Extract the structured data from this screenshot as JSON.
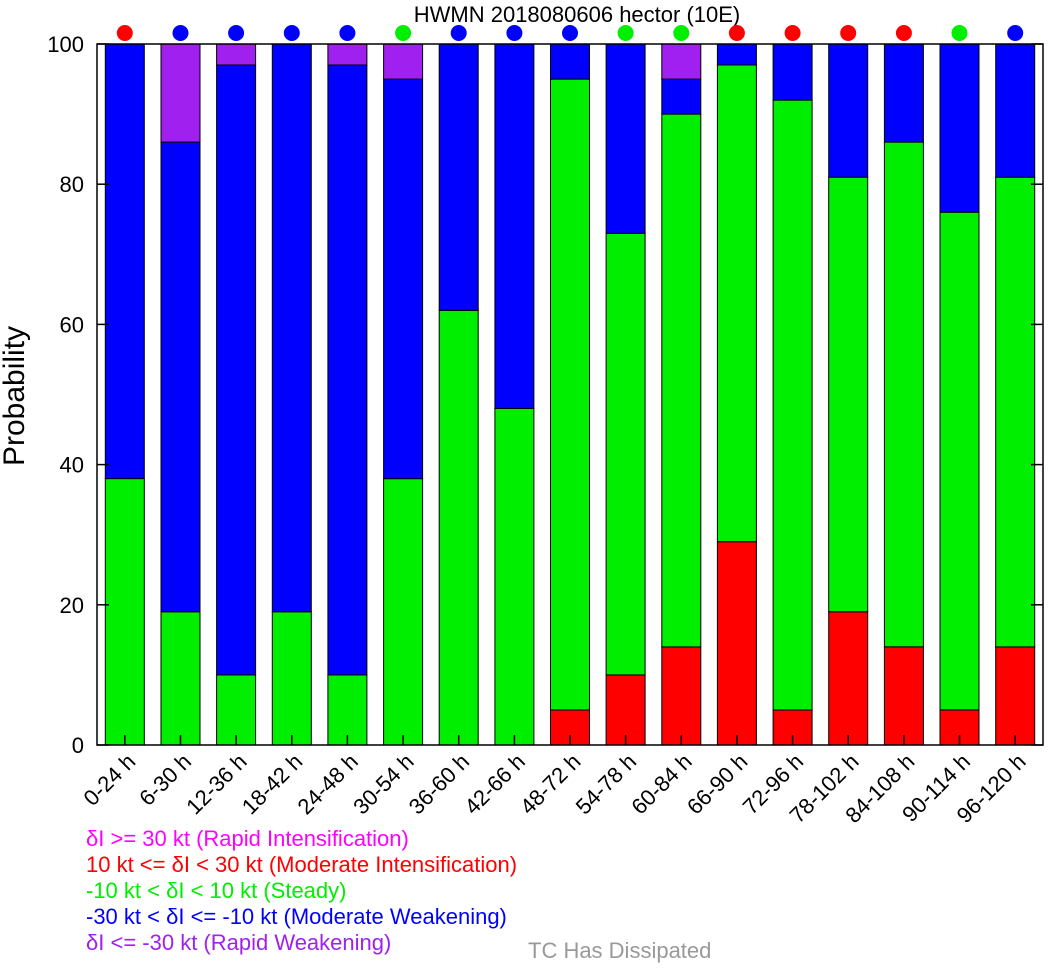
{
  "chart_data": {
    "type": "bar",
    "stacked": true,
    "title": "HWMN 2018080606 hector (10E)",
    "ylabel": "Probability",
    "xlabel": "",
    "ylim": [
      0,
      100
    ],
    "yticks": [
      0,
      20,
      40,
      60,
      80,
      100
    ],
    "categories": [
      "0-24 h",
      "6-30 h",
      "12-36 h",
      "18-42 h",
      "24-48 h",
      "30-54 h",
      "36-60 h",
      "42-66 h",
      "48-72 h",
      "54-78 h",
      "60-84 h",
      "66-90 h",
      "72-96 h",
      "78-102 h",
      "84-108 h",
      "90-114 h",
      "96-120 h"
    ],
    "series": [
      {
        "key": "ri",
        "color": "#ff00ff",
        "values": [
          0,
          0,
          0,
          0,
          0,
          0,
          0,
          0,
          0,
          0,
          0,
          0,
          0,
          0,
          0,
          0,
          0
        ]
      },
      {
        "key": "mi",
        "color": "#ff0000",
        "values": [
          0,
          0,
          0,
          0,
          0,
          0,
          0,
          0,
          5,
          10,
          14,
          29,
          5,
          19,
          14,
          5,
          14
        ]
      },
      {
        "key": "st",
        "color": "#00ee00",
        "values": [
          38,
          19,
          10,
          19,
          10,
          38,
          62,
          48,
          90,
          63,
          76,
          68,
          87,
          62,
          72,
          71,
          67
        ]
      },
      {
        "key": "mw",
        "color": "#0000ff",
        "values": [
          62,
          67,
          87,
          81,
          87,
          57,
          38,
          52,
          5,
          27,
          5,
          3,
          8,
          19,
          14,
          24,
          19
        ]
      },
      {
        "key": "rw",
        "color": "#a020f0",
        "values": [
          0,
          14,
          3,
          0,
          3,
          5,
          0,
          0,
          0,
          0,
          5,
          0,
          0,
          0,
          0,
          0,
          0
        ]
      }
    ],
    "dot_colors": [
      "#ff0000",
      "#0000ff",
      "#0000ff",
      "#0000ff",
      "#0000ff",
      "#00ee00",
      "#0000ff",
      "#0000ff",
      "#0000ff",
      "#00ee00",
      "#00ee00",
      "#ff0000",
      "#ff0000",
      "#ff0000",
      "#ff0000",
      "#00ee00",
      "#0000ff"
    ],
    "legend": [
      {
        "text": "δI >= 30 kt (Rapid Intensification)",
        "color": "#ff00ff"
      },
      {
        "text": "10 kt <= δI < 30 kt (Moderate Intensification)",
        "color": "#ff0000"
      },
      {
        "text": "-10 kt < δI < 10 kt (Steady)",
        "color": "#00ee00"
      },
      {
        "text": "-30 kt < δI <= -10 kt (Moderate Weakening)",
        "color": "#0000ff"
      },
      {
        "text": "δI <= -30 kt (Rapid Weakening)",
        "color": "#a020f0"
      }
    ],
    "dissipated_label": {
      "text": "TC Has Dissipated",
      "color": "#999999"
    },
    "grid": false
  }
}
